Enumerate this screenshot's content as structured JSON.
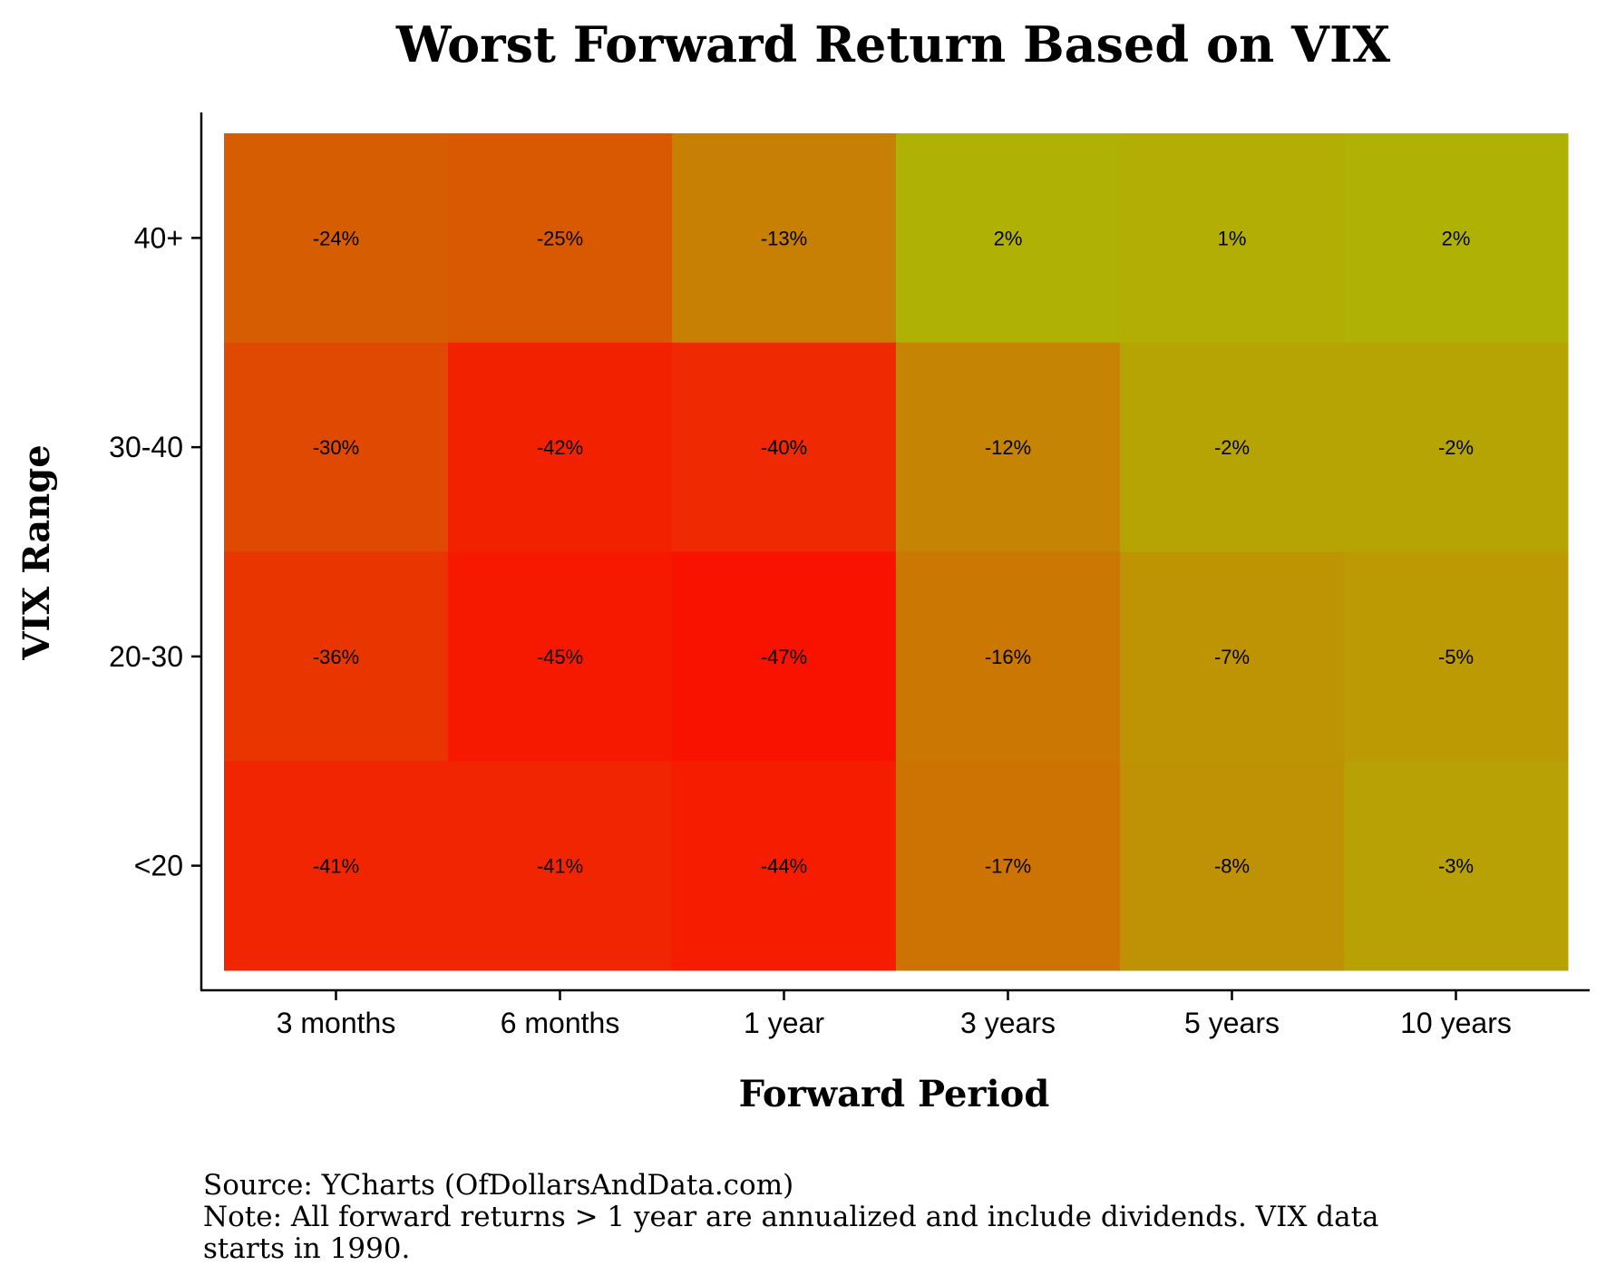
{
  "chart_data": {
    "type": "heatmap",
    "title": "Worst Forward Return Based on VIX",
    "xlabel": "Forward Period",
    "ylabel": "VIX Range",
    "x_categories": [
      "3 months",
      "6 months",
      "1 year",
      "3 years",
      "5 years",
      "10 years"
    ],
    "y_categories": [
      "40+",
      "30-40",
      "20-30",
      "<20"
    ],
    "value_unit": "%",
    "values": [
      [
        -24,
        -25,
        -13,
        2,
        1,
        2
      ],
      [
        -30,
        -42,
        -40,
        -12,
        -2,
        -2
      ],
      [
        -36,
        -45,
        -47,
        -16,
        -7,
        -5
      ],
      [
        -41,
        -41,
        -44,
        -17,
        -8,
        -3
      ]
    ],
    "cell_labels": [
      [
        "-24%",
        "-25%",
        "-13%",
        "2%",
        "1%",
        "2%"
      ],
      [
        "-30%",
        "-42%",
        "-40%",
        "-12%",
        "-2%",
        "-2%"
      ],
      [
        "-36%",
        "-45%",
        "-47%",
        "-16%",
        "-7%",
        "-5%"
      ],
      [
        "-41%",
        "-41%",
        "-44%",
        "-17%",
        "-8%",
        "-3%"
      ]
    ],
    "color_scale": {
      "low": "#fa1200",
      "high": "#b0b105"
    },
    "grid": false,
    "legend": "none"
  },
  "caption": {
    "source": "Source: YCharts (OfDollarsAndData.com)",
    "note": "Note: All forward returns > 1 year are annualized and include dividends. VIX data starts in 1990."
  }
}
